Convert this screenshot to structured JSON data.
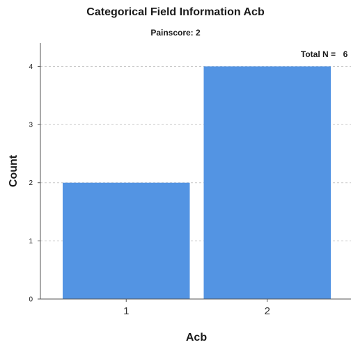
{
  "chart_data": {
    "type": "bar",
    "title": "Categorical Field Information Acb",
    "subtitle": "Painscore: 2",
    "xlabel": "Acb",
    "ylabel": "Count",
    "categories": [
      "1",
      "2"
    ],
    "values": [
      2,
      4
    ],
    "ylim": [
      0,
      4.4
    ],
    "yticks": [
      "0",
      "1",
      "2",
      "3",
      "4"
    ],
    "grid": true,
    "annotation": {
      "label": "Total N =",
      "value": "6"
    },
    "colors": {
      "bar": "#5394e3"
    }
  }
}
